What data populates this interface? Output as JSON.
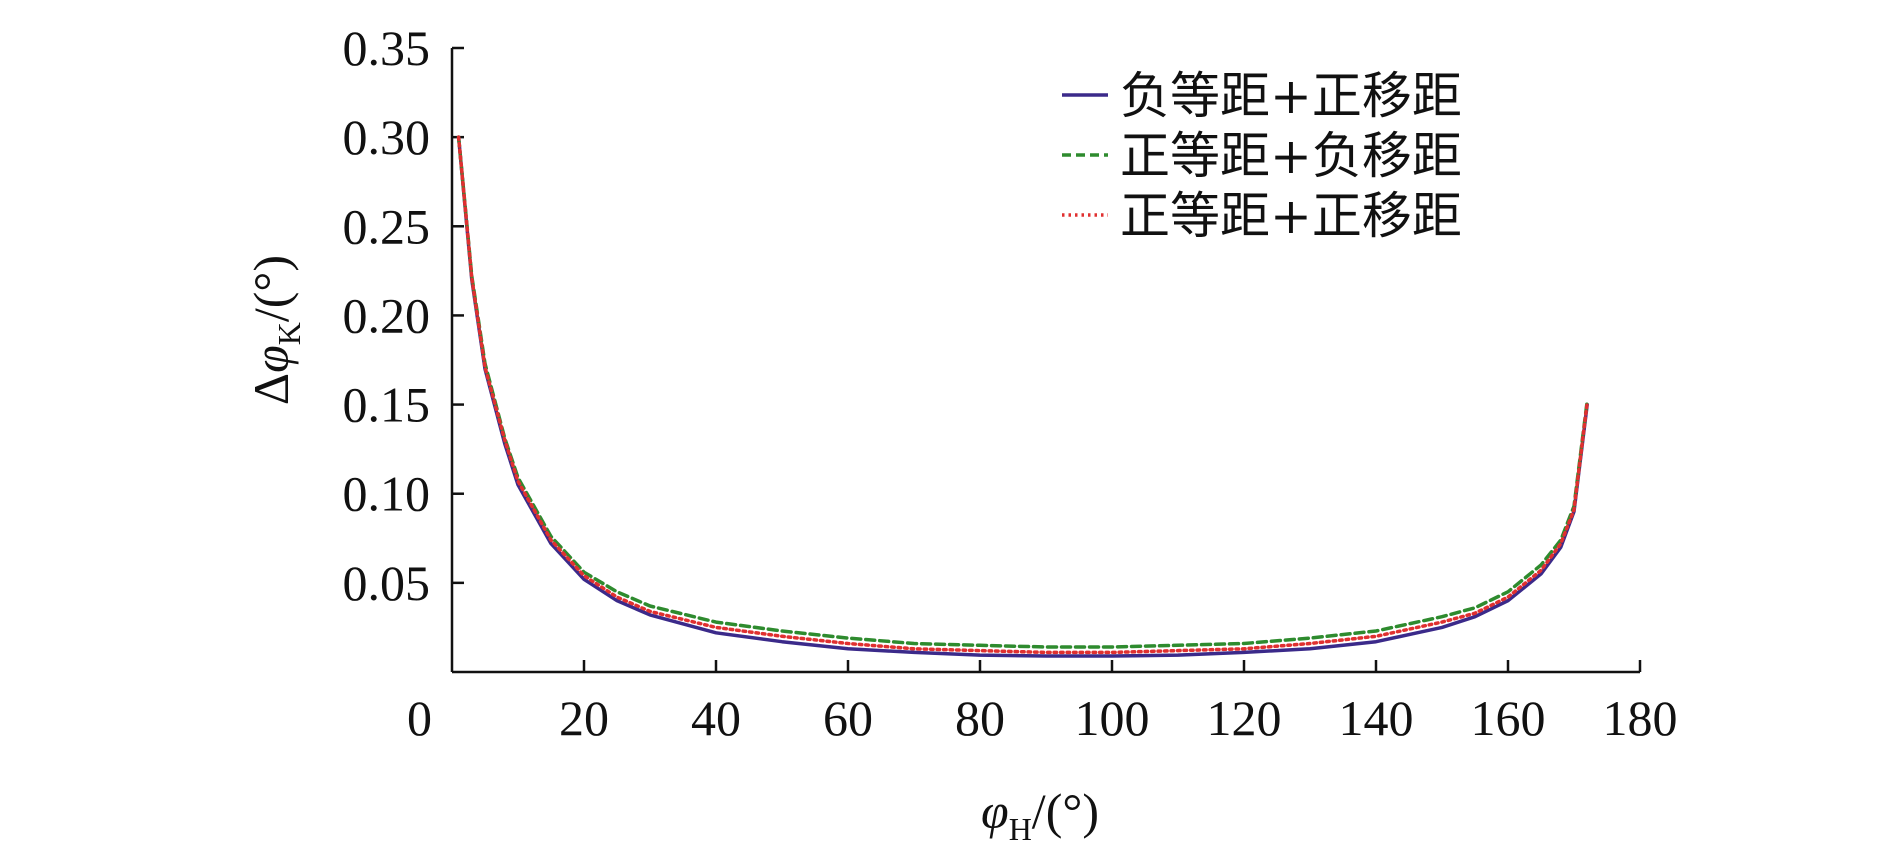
{
  "chart_data": {
    "type": "line",
    "xlabel": {
      "symbol": "φ",
      "subscript": "H",
      "unit": "/(°)"
    },
    "ylabel": {
      "prefix": "Δ",
      "symbol": "φ",
      "subscript": "K",
      "unit": "/(°)"
    },
    "xlim": [
      0,
      180
    ],
    "ylim": [
      0,
      0.35
    ],
    "x_ticks": [
      0,
      20,
      40,
      60,
      80,
      100,
      120,
      140,
      160,
      180
    ],
    "x_tick_labels": [
      "0",
      "20",
      "40",
      "60",
      "80",
      "100",
      "120",
      "140",
      "160",
      "180"
    ],
    "y_ticks": [
      0.05,
      0.1,
      0.15,
      0.2,
      0.25,
      0.3,
      0.35
    ],
    "y_tick_labels": [
      "0.05",
      "0.10",
      "0.15",
      "0.20",
      "0.25",
      "0.30",
      "0.35"
    ],
    "grid": false,
    "legend_position": "top-right",
    "x": [
      1,
      3,
      5,
      8,
      10,
      15,
      20,
      25,
      30,
      40,
      50,
      60,
      70,
      80,
      90,
      100,
      110,
      120,
      130,
      140,
      150,
      155,
      160,
      165,
      168,
      170,
      172
    ],
    "series": [
      {
        "name": "负等距+正移距",
        "color": "#3b2a8a",
        "dash": "solid",
        "values": [
          0.3,
          0.22,
          0.17,
          0.128,
          0.105,
          0.072,
          0.052,
          0.04,
          0.032,
          0.022,
          0.017,
          0.013,
          0.011,
          0.0095,
          0.009,
          0.009,
          0.0095,
          0.011,
          0.013,
          0.017,
          0.025,
          0.031,
          0.04,
          0.055,
          0.07,
          0.09,
          0.15
        ]
      },
      {
        "name": "正等距+负移距",
        "color": "#2e8b2e",
        "dash": "dashed",
        "values": [
          0.3,
          0.222,
          0.173,
          0.131,
          0.109,
          0.076,
          0.056,
          0.045,
          0.037,
          0.028,
          0.023,
          0.019,
          0.016,
          0.015,
          0.014,
          0.014,
          0.015,
          0.016,
          0.019,
          0.023,
          0.031,
          0.036,
          0.045,
          0.06,
          0.074,
          0.093,
          0.152
        ]
      },
      {
        "name": "正等距+正移距",
        "color": "#e03030",
        "dash": "dotted",
        "values": [
          0.3,
          0.221,
          0.171,
          0.13,
          0.107,
          0.074,
          0.054,
          0.042,
          0.034,
          0.025,
          0.02,
          0.016,
          0.013,
          0.012,
          0.011,
          0.011,
          0.012,
          0.013,
          0.016,
          0.02,
          0.028,
          0.033,
          0.042,
          0.057,
          0.072,
          0.091,
          0.151
        ]
      }
    ]
  }
}
